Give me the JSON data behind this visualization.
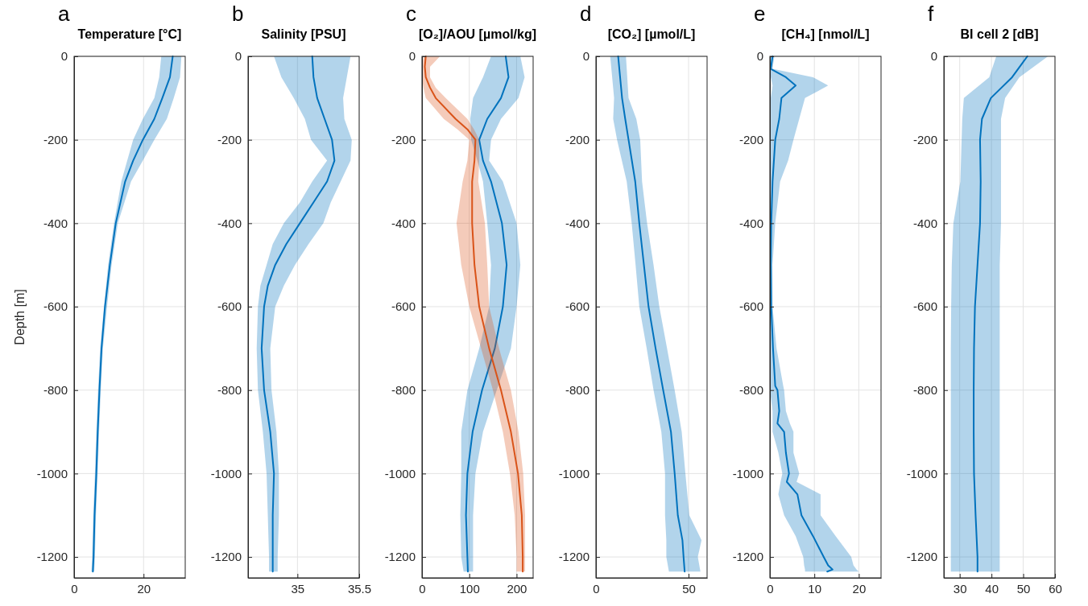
{
  "chart_data": [
    {
      "type": "line",
      "orientation": "horizontal",
      "title": "Temperature [°C]",
      "ylabel": "Depth [m]",
      "annotations": [
        "a"
      ],
      "xlim": [
        0,
        32
      ],
      "xticks": [
        0,
        20
      ],
      "ylim": [
        -1250,
        0
      ],
      "yticks": [
        -1200,
        -1000,
        -800,
        -600,
        -400,
        -200,
        0
      ],
      "grid": true,
      "series": [
        {
          "color": "#0072bd",
          "x": [
            0,
            -50,
            -100,
            -150,
            -200,
            -250,
            -300,
            -400,
            -500,
            -600,
            -700,
            -800,
            -900,
            -1000,
            -1100,
            -1200,
            -1235
          ],
          "values": [
            28.4,
            27.6,
            25.4,
            23.1,
            19.8,
            17.0,
            14.7,
            12.0,
            10.3,
            8.9,
            7.9,
            7.3,
            6.8,
            6.4,
            5.9,
            5.6,
            5.4
          ],
          "lower": [
            25.1,
            24.5,
            23.1,
            19.8,
            17.0,
            15.3,
            13.6,
            11.5,
            9.8,
            8.6,
            7.5,
            6.9,
            6.4,
            6.0,
            5.5,
            5.2,
            5.0
          ],
          "upper": [
            30.9,
            30.5,
            28.7,
            26.7,
            23.1,
            19.8,
            16.4,
            12.6,
            10.8,
            9.5,
            8.3,
            7.7,
            7.2,
            6.8,
            6.3,
            6.0,
            5.8
          ]
        }
      ]
    },
    {
      "type": "line",
      "orientation": "horizontal",
      "title": "Salinity [PSU]",
      "annotations": [
        "b"
      ],
      "xlim": [
        34.6,
        35.5
      ],
      "xticks": [
        35,
        35.5
      ],
      "ylim": [
        -1250,
        0
      ],
      "yticks": [
        -1200,
        -1000,
        -800,
        -600,
        -400,
        -200,
        0
      ],
      "grid": true,
      "series": [
        {
          "color": "#0072bd",
          "x": [
            0,
            -50,
            -100,
            -150,
            -200,
            -250,
            -300,
            -350,
            -400,
            -450,
            -500,
            -550,
            -600,
            -700,
            -800,
            -900,
            -1000,
            -1100,
            -1200,
            -1235
          ],
          "values": [
            35.12,
            35.13,
            35.16,
            35.22,
            35.28,
            35.3,
            35.24,
            35.13,
            35.02,
            34.91,
            34.82,
            34.76,
            34.73,
            34.71,
            34.73,
            34.78,
            34.81,
            34.8,
            34.8,
            34.8
          ],
          "lower": [
            34.81,
            34.87,
            34.97,
            35.06,
            35.11,
            35.24,
            35.12,
            35.02,
            34.89,
            34.8,
            34.75,
            34.7,
            34.68,
            34.67,
            34.68,
            34.72,
            34.75,
            34.76,
            34.77,
            34.77
          ],
          "upper": [
            35.43,
            35.4,
            35.37,
            35.38,
            35.44,
            35.43,
            35.35,
            35.27,
            35.21,
            35.09,
            34.98,
            34.89,
            34.82,
            34.78,
            34.79,
            34.83,
            34.85,
            34.85,
            34.84,
            34.84
          ]
        }
      ]
    },
    {
      "type": "line",
      "orientation": "horizontal",
      "title": "[O₂]/AOU [µmol/kg]",
      "annotations": [
        "c"
      ],
      "xlim": [
        0,
        235
      ],
      "xticks": [
        0,
        100,
        200
      ],
      "ylim": [
        -1250,
        0
      ],
      "yticks": [
        -1200,
        -1000,
        -800,
        -600,
        -400,
        -200,
        0
      ],
      "grid": true,
      "series": [
        {
          "color": "#0072bd",
          "x": [
            0,
            -50,
            -100,
            -150,
            -200,
            -250,
            -300,
            -400,
            -500,
            -600,
            -700,
            -800,
            -900,
            -1000,
            -1100,
            -1200,
            -1235
          ],
          "values": [
            177,
            183,
            167,
            138,
            121,
            129,
            146,
            169,
            179,
            171,
            154,
            127,
            107,
            96,
            93,
            96,
            97
          ],
          "lower": [
            146,
            129,
            108,
            102,
            104,
            117,
            129,
            138,
            146,
            142,
            121,
            96,
            83,
            83,
            81,
            83,
            88
          ],
          "upper": [
            208,
            217,
            204,
            167,
            146,
            142,
            171,
            200,
            208,
            200,
            188,
            158,
            129,
            113,
            108,
            108,
            108
          ]
        },
        {
          "color": "#d95319",
          "x": [
            0,
            -25,
            -50,
            -75,
            -100,
            -150,
            -175,
            -200,
            -250,
            -300,
            -400,
            -500,
            -600,
            -700,
            -800,
            -900,
            -1000,
            -1100,
            -1200,
            -1235
          ],
          "values": [
            8,
            6,
            8,
            17,
            29,
            71,
            96,
            113,
            111,
            106,
            106,
            111,
            121,
            142,
            167,
            188,
            203,
            211,
            213,
            213
          ],
          "lower": [
            3,
            0,
            0,
            3,
            8,
            46,
            75,
            100,
            96,
            86,
            73,
            83,
            100,
            125,
            150,
            171,
            186,
            196,
            200,
            200
          ],
          "upper": [
            38,
            17,
            17,
            29,
            50,
            96,
            110,
            121,
            121,
            119,
            133,
            138,
            142,
            163,
            188,
            204,
            214,
            218,
            218,
            218
          ]
        }
      ]
    },
    {
      "type": "line",
      "orientation": "horizontal",
      "title": "[CO₂] [µmol/L]",
      "annotations": [
        "d"
      ],
      "xlim": [
        0,
        60
      ],
      "xticks": [
        0,
        50
      ],
      "ylim": [
        -1250,
        0
      ],
      "yticks": [
        -1200,
        -1000,
        -800,
        -600,
        -400,
        -200,
        0
      ],
      "grid": true,
      "series": [
        {
          "color": "#0072bd",
          "x": [
            0,
            -100,
            -150,
            -200,
            -300,
            -400,
            -500,
            -600,
            -700,
            -800,
            -900,
            -1000,
            -1100,
            -1160,
            -1200,
            -1235
          ],
          "values": [
            12.0,
            14.1,
            15.8,
            17.6,
            21.2,
            23.4,
            25.9,
            28.4,
            32.2,
            36.3,
            40.5,
            42.5,
            44.2,
            46.7,
            47.3,
            47.9
          ],
          "lower": [
            7.7,
            9.8,
            9.3,
            11.4,
            16.6,
            19.3,
            21.4,
            23.4,
            27.4,
            31.1,
            35.3,
            37.3,
            37.3,
            38,
            38,
            39.4
          ],
          "upper": [
            16.2,
            17.6,
            21.8,
            23.9,
            24.9,
            27.6,
            31.1,
            34.2,
            38.4,
            42.5,
            46.3,
            48.3,
            50.4,
            57,
            55,
            56.4
          ]
        }
      ]
    },
    {
      "type": "line",
      "orientation": "horizontal",
      "title": "[CH₄] [nmol/L]",
      "annotations": [
        "e"
      ],
      "xlim": [
        0,
        25
      ],
      "xticks": [
        0,
        10,
        20
      ],
      "ylim": [
        -1250,
        0
      ],
      "yticks": [
        -1200,
        -1000,
        -800,
        -600,
        -400,
        -200,
        0
      ],
      "grid": true,
      "series": [
        {
          "color": "#0072bd",
          "x": [
            0,
            -30,
            -50,
            -70,
            -100,
            -150,
            -200,
            -250,
            -300,
            -400,
            -500,
            -600,
            -700,
            -790,
            -800,
            -850,
            -880,
            -900,
            -950,
            -1000,
            -1020,
            -1050,
            -1100,
            -1150,
            -1200,
            -1220,
            -1230,
            -1235
          ],
          "values": [
            0.6,
            0.2,
            3.6,
            5.8,
            2.6,
            2.1,
            1.2,
            0.9,
            0.6,
            0.3,
            0.2,
            0.3,
            0.7,
            1.2,
            1.7,
            2.1,
            1.7,
            3.2,
            3.6,
            4.3,
            3.8,
            6.2,
            7.1,
            9.7,
            12.1,
            13.1,
            14.1,
            12.9
          ],
          "lower": [
            0,
            0,
            0.2,
            0.6,
            0.2,
            0.2,
            0.2,
            0.2,
            0,
            0,
            0,
            0,
            0,
            0,
            0,
            0.6,
            0.6,
            0.6,
            1.9,
            2.8,
            2.4,
            1.9,
            3.2,
            5.8,
            7.5,
            7.7,
            7.9,
            7.9
          ],
          "upper": [
            1.0,
            0.6,
            9.7,
            13.1,
            7.9,
            6.6,
            5.3,
            4.1,
            2.3,
            1.2,
            0.6,
            0.6,
            1.5,
            3.0,
            3.2,
            3.6,
            4.5,
            5.3,
            5.3,
            6.6,
            6.0,
            11.4,
            11.4,
            14.8,
            18.3,
            18.8,
            19.5,
            20
          ]
        }
      ]
    },
    {
      "type": "line",
      "orientation": "horizontal",
      "title": "BI cell 2 [dB]",
      "annotations": [
        "f"
      ],
      "xlim": [
        25,
        60
      ],
      "xticks": [
        30,
        40,
        50,
        60
      ],
      "ylim": [
        -1250,
        0
      ],
      "yticks": [
        -1200,
        -1000,
        -800,
        -600,
        -400,
        -200,
        0
      ],
      "grid": true,
      "series": [
        {
          "color": "#0072bd",
          "x": [
            0,
            -50,
            -100,
            -150,
            -200,
            -300,
            -400,
            -500,
            -600,
            -700,
            -800,
            -900,
            -1000,
            -1100,
            -1200,
            -1235
          ],
          "values": [
            51.3,
            46.5,
            39.8,
            37.0,
            36.4,
            36.6,
            36.4,
            35.6,
            34.8,
            34.5,
            34.4,
            34.4,
            34.5,
            35.0,
            35.6,
            35.6
          ],
          "lower": [
            41.5,
            39.3,
            31.3,
            30.8,
            30.6,
            30.2,
            28.0,
            27.5,
            27.3,
            27.2,
            27.2,
            27.2,
            27.2,
            27.2,
            27.2,
            27.2
          ],
          "upper": [
            57.8,
            48.8,
            44.3,
            43.0,
            43.0,
            43.0,
            43.0,
            42.6,
            42.6,
            42.6,
            42.6,
            42.6,
            42.6,
            42.6,
            42.6,
            42.6
          ]
        }
      ]
    }
  ]
}
